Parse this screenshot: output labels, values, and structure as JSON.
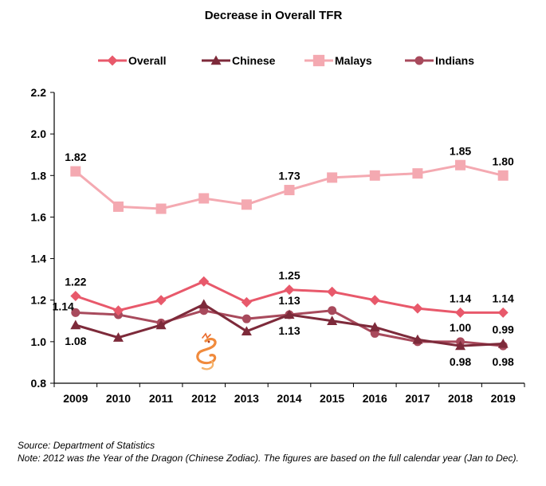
{
  "chart_data": {
    "type": "line",
    "title": "Decrease in Overall TFR",
    "x": [
      "2009",
      "2010",
      "2011",
      "2012",
      "2013",
      "2014",
      "2015",
      "2016",
      "2017",
      "2018",
      "2019"
    ],
    "ylim": [
      0.8,
      2.2
    ],
    "yticks": [
      "0.8",
      "1.0",
      "1.2",
      "1.4",
      "1.6",
      "1.8",
      "2.0",
      "2.2"
    ],
    "grid": false,
    "legend_position": "top",
    "series": [
      {
        "name": "Overall",
        "color": "#e8596b",
        "marker": "diamond",
        "values": [
          1.22,
          1.15,
          1.2,
          1.29,
          1.19,
          1.25,
          1.24,
          1.2,
          1.16,
          1.14,
          1.14
        ]
      },
      {
        "name": "Chinese",
        "color": "#7d2a3a",
        "marker": "triangle",
        "values": [
          1.08,
          1.02,
          1.08,
          1.18,
          1.05,
          1.13,
          1.1,
          1.07,
          1.01,
          0.98,
          0.99
        ]
      },
      {
        "name": "Malays",
        "color": "#f4a9b1",
        "marker": "square",
        "values": [
          1.82,
          1.65,
          1.64,
          1.69,
          1.66,
          1.73,
          1.79,
          1.8,
          1.81,
          1.85,
          1.8
        ]
      },
      {
        "name": "Indians",
        "color": "#a84a5c",
        "marker": "circle",
        "values": [
          1.14,
          1.13,
          1.09,
          1.15,
          1.11,
          1.13,
          1.15,
          1.04,
          1.0,
          1.0,
          0.98
        ]
      }
    ],
    "data_labels": [
      {
        "series": 2,
        "index": 0,
        "text": "1.82",
        "pos": "above"
      },
      {
        "series": 2,
        "index": 5,
        "text": "1.73",
        "pos": "above"
      },
      {
        "series": 2,
        "index": 9,
        "text": "1.85",
        "pos": "above"
      },
      {
        "series": 2,
        "index": 10,
        "text": "1.80",
        "pos": "above"
      },
      {
        "series": 0,
        "index": 0,
        "text": "1.22",
        "pos": "above"
      },
      {
        "series": 0,
        "index": 5,
        "text": "1.25",
        "pos": "above"
      },
      {
        "series": 0,
        "index": 9,
        "text": "1.14",
        "pos": "above"
      },
      {
        "series": 0,
        "index": 10,
        "text": "1.14",
        "pos": "above"
      },
      {
        "series": 3,
        "index": 0,
        "text": "1.14",
        "pos": "left"
      },
      {
        "series": 3,
        "index": 5,
        "text": "1.13",
        "pos": "above"
      },
      {
        "series": 3,
        "index": 9,
        "text": "1.00",
        "pos": "above"
      },
      {
        "series": 1,
        "index": 0,
        "text": "1.08",
        "pos": "below"
      },
      {
        "series": 1,
        "index": 5,
        "text": "1.13",
        "pos": "below"
      },
      {
        "series": 1,
        "index": 9,
        "text": "0.98",
        "pos": "below"
      },
      {
        "series": 1,
        "index": 10,
        "text": "0.99",
        "pos": "above"
      },
      {
        "series": 3,
        "index": 10,
        "text": "0.98",
        "pos": "below"
      }
    ],
    "annotation_icon": "dragon-icon",
    "annotation_at": "2012"
  },
  "footer": {
    "source": "Source: Department of Statistics",
    "note": "Note: 2012 was the Year of the Dragon (Chinese Zodiac). The figures are based on the full calendar year (Jan to Dec)."
  }
}
